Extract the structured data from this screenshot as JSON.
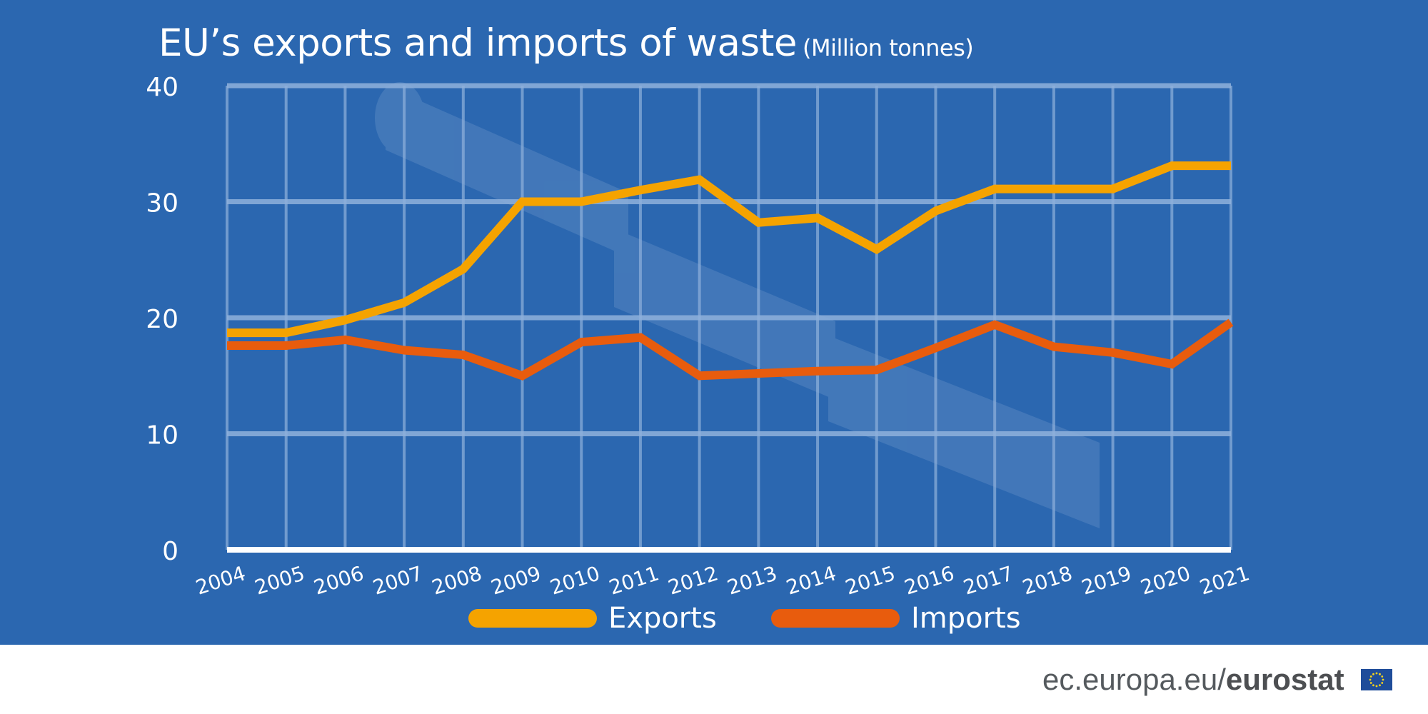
{
  "title": {
    "main": "EU’s exports and imports of waste",
    "unit": "(Million tonnes)"
  },
  "colors": {
    "background": "#2b67b0",
    "exports": "#f5a300",
    "imports": "#e85c0d",
    "grid": "#8fb1dc",
    "text": "#ffffff"
  },
  "chart_data": {
    "type": "line",
    "title": "EU’s exports and imports of waste (Million tonnes)",
    "xlabel": "",
    "ylabel": "",
    "ylim": [
      0,
      40
    ],
    "yticks": [
      0,
      10,
      20,
      30,
      40
    ],
    "categories": [
      "2004",
      "2005",
      "2006",
      "2007",
      "2008",
      "2009",
      "2010",
      "2011",
      "2012",
      "2013",
      "2014",
      "2015",
      "2016",
      "2017",
      "2018",
      "2019",
      "2020",
      "2021"
    ],
    "grid": true,
    "legend_position": "bottom",
    "series": [
      {
        "name": "Exports",
        "color": "#f5a300",
        "values": [
          18.7,
          18.7,
          19.8,
          21.3,
          24.2,
          30.0,
          30.0,
          31.0,
          31.9,
          28.2,
          28.6,
          25.9,
          29.2,
          31.1,
          31.1,
          31.1,
          33.1,
          33.1
        ]
      },
      {
        "name": "Imports",
        "color": "#e85c0d",
        "values": [
          17.6,
          17.6,
          18.1,
          17.2,
          16.8,
          15.0,
          17.9,
          18.3,
          15.0,
          15.2,
          15.4,
          15.5,
          17.4,
          19.4,
          17.5,
          17.0,
          16.0,
          19.6
        ]
      }
    ]
  },
  "legend": {
    "exports_label": "Exports",
    "imports_label": "Imports"
  },
  "footer": {
    "domain": "ec.europa.eu/",
    "brand": "eurostat"
  }
}
